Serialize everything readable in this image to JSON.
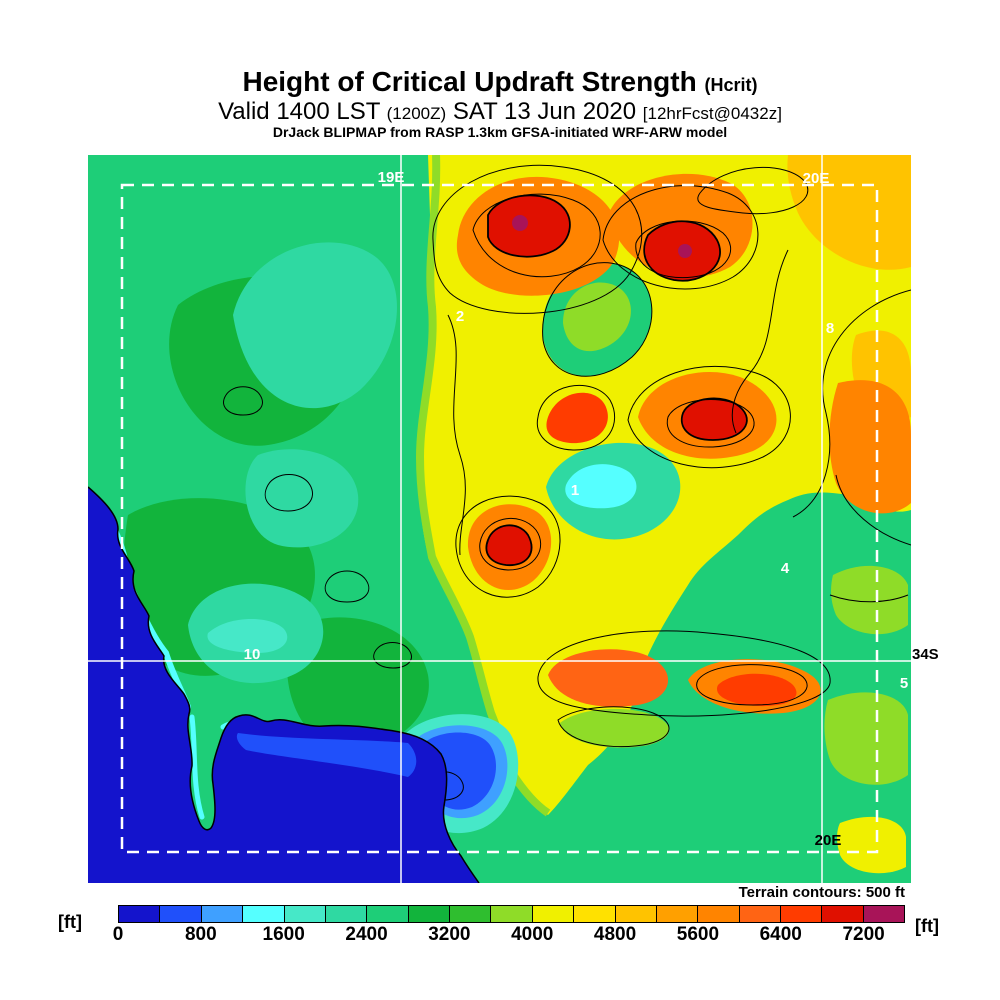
{
  "header": {
    "title": "Height of Critical Updraft Strength",
    "title_paren": "(Hcrit)",
    "valid_prefix": "Valid 1400 LST",
    "valid_zulu": "(1200Z)",
    "valid_date": "SAT 13 Jun 2020",
    "valid_fcst": "[12hrFcst@0432z]",
    "model_line": "DrJack BLIPMAP from RASP 1.3km GFSA-initiated WRF-ARW model"
  },
  "map": {
    "grid_labels": {
      "top_left": "19E",
      "top_right": "20E",
      "bottom_right": "20E",
      "right_lat": "34S"
    },
    "region_markers": [
      {
        "text": "2"
      },
      {
        "text": "8"
      },
      {
        "text": "1"
      },
      {
        "text": "4"
      },
      {
        "text": "10"
      },
      {
        "text": "5"
      }
    ],
    "terrain_note": "Terrain contours: 500 ft"
  },
  "colorbar": {
    "unit_left": "[ft]",
    "unit_right": "[ft]",
    "tick_labels": [
      "0",
      "800",
      "1600",
      "2400",
      "3200",
      "4000",
      "4800",
      "5600",
      "6400",
      "7200"
    ],
    "bin_start_ft": 0,
    "bin_step_ft": 400,
    "bin_count": 19,
    "colors": [
      "#1414CC",
      "#2050FA",
      "#3FA0FF",
      "#55FFFF",
      "#46E8C8",
      "#2FD9A2",
      "#1ECE78",
      "#12B43C",
      "#2FBE2F",
      "#8FDC28",
      "#F0F000",
      "#FFE100",
      "#FFC300",
      "#FFA000",
      "#FF8400",
      "#FF6414",
      "#FF3C00",
      "#E01000",
      "#A81458"
    ]
  }
}
